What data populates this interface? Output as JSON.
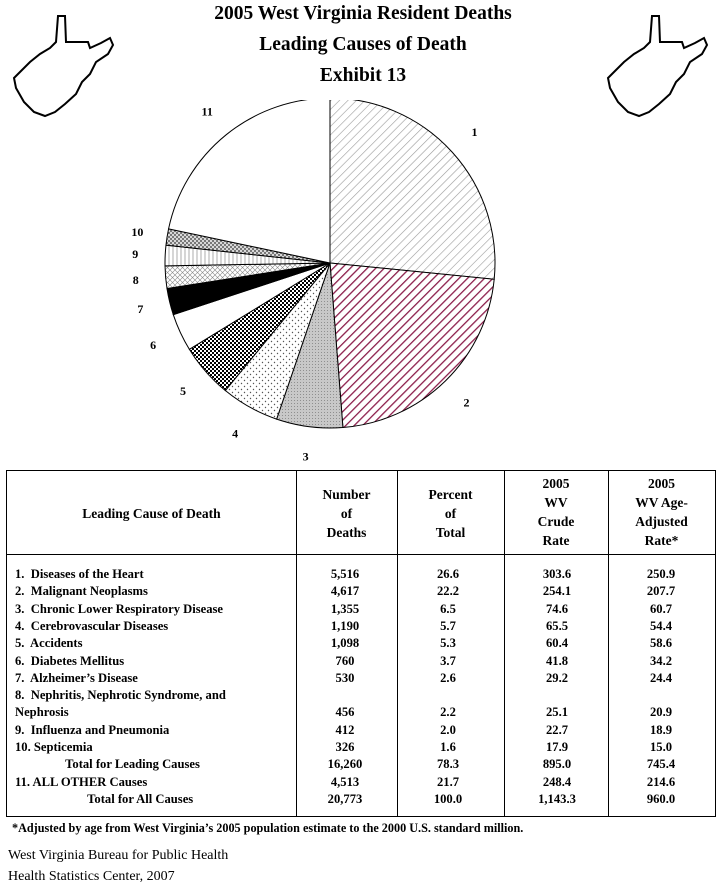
{
  "header": {
    "line1": "2005 West Virginia Resident Deaths",
    "line2": "Leading Causes of Death",
    "line3": "Exhibit 13"
  },
  "chart_data": {
    "type": "pie",
    "slice_labels": [
      "1",
      "2",
      "3",
      "4",
      "5",
      "6",
      "7",
      "8",
      "9",
      "10",
      "11"
    ],
    "values": [
      26.6,
      22.2,
      6.5,
      5.7,
      5.3,
      3.7,
      2.6,
      2.2,
      2.0,
      1.6,
      21.7
    ],
    "start": "12 o'clock, clockwise"
  },
  "table": {
    "headers": {
      "cause": [
        "Leading Cause of Death"
      ],
      "deaths": [
        "Number",
        "of",
        "Deaths"
      ],
      "percent": [
        "Percent",
        "of",
        "Total"
      ],
      "crude": [
        "2005",
        "WV",
        "Crude",
        "Rate"
      ],
      "adjusted": [
        "2005",
        "WV Age-",
        "Adjusted",
        "Rate*"
      ]
    },
    "rows": [
      [
        "1.  Diseases of the Heart",
        "5,516",
        "26.6",
        "303.6",
        "250.9"
      ],
      [
        "2.  Malignant Neoplasms",
        "4,617",
        "22.2",
        "254.1",
        "207.7"
      ],
      [
        "3.  Chronic Lower Respiratory Disease",
        "1,355",
        "6.5",
        "74.6",
        "60.7"
      ],
      [
        "4.  Cerebrovascular Diseases",
        "1,190",
        "5.7",
        "65.5",
        "54.4"
      ],
      [
        "5.  Accidents",
        "1,098",
        "5.3",
        "60.4",
        "58.6"
      ],
      [
        "6.  Diabetes Mellitus",
        "760",
        "3.7",
        "41.8",
        "34.2"
      ],
      [
        "7.  Alzheimer’s Disease",
        "530",
        "2.6",
        "29.2",
        "24.4"
      ],
      [
        "8.  Nephritis, Nephrotic Syndrome, and",
        "",
        "",
        "",
        ""
      ],
      [
        "Nephrosis",
        "456",
        "2.2",
        "25.1",
        "20.9"
      ],
      [
        "9.  Influenza and Pneumonia",
        "412",
        "2.0",
        "22.7",
        "18.9"
      ],
      [
        "10. Septicemia",
        "326",
        "1.6",
        "17.9",
        "15.0"
      ],
      [
        "                Total for Leading Causes",
        "16,260",
        "78.3",
        "895.0",
        "745.4"
      ],
      [
        "11. ALL OTHER Causes",
        "4,513",
        "21.7",
        "248.4",
        "214.6"
      ],
      [
        "                       Total for All Causes",
        "20,773",
        "100.0",
        "1,143.3",
        "960.0"
      ]
    ]
  },
  "footnote": "*Adjusted by age from West Virginia’s 2005 population estimate to the 2000 U.S. standard million.",
  "source": {
    "line1": "West Virginia Bureau for Public Health",
    "line2": "Health Statistics Center, 2007"
  }
}
